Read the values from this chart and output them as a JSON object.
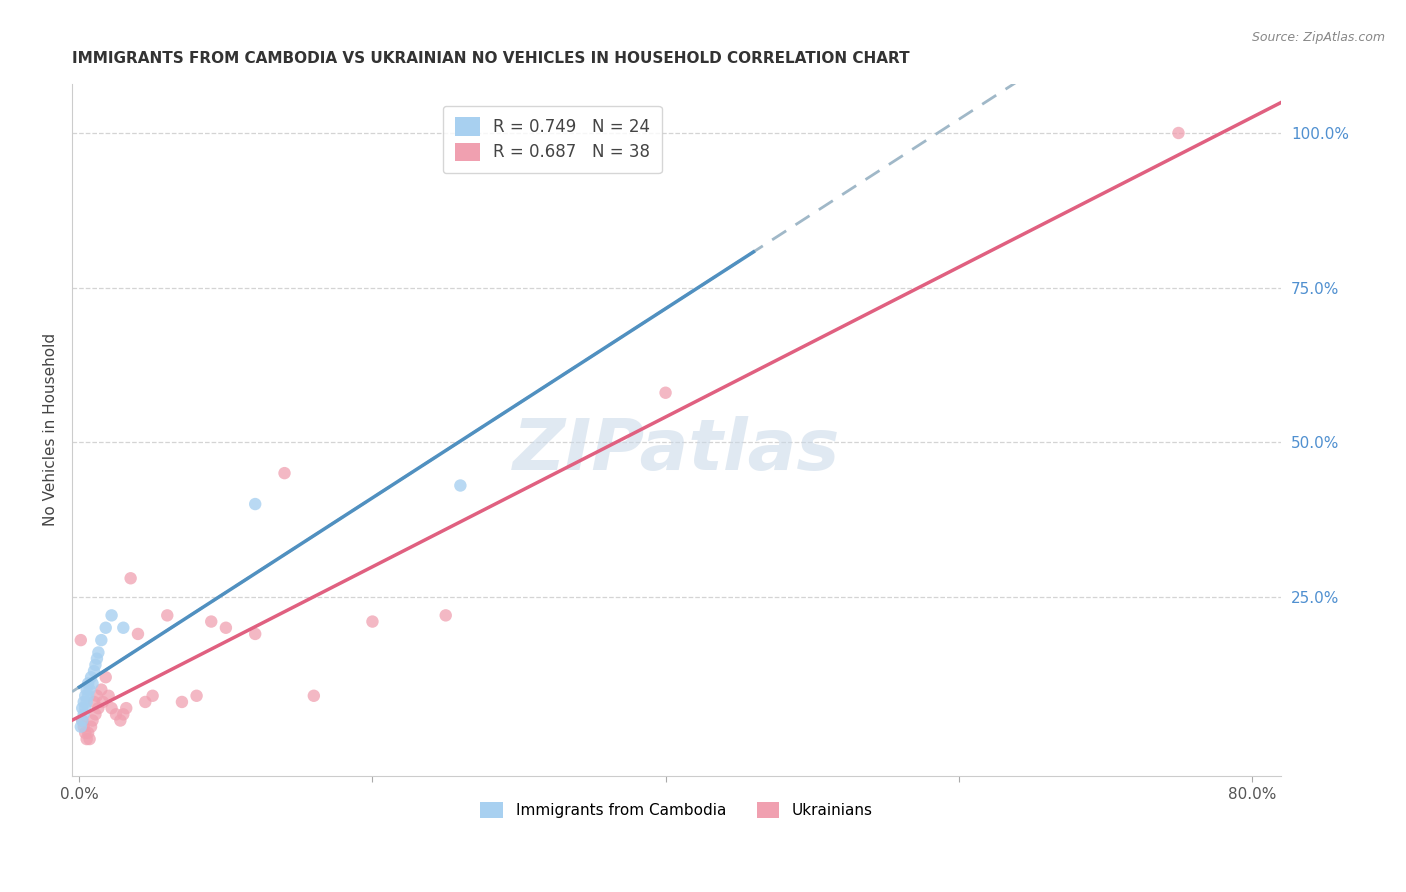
{
  "title": "IMMIGRANTS FROM CAMBODIA VS UKRAINIAN NO VEHICLES IN HOUSEHOLD CORRELATION CHART",
  "source": "Source: ZipAtlas.com",
  "ylabel": "No Vehicles in Household",
  "xlim_min": -0.005,
  "xlim_max": 0.82,
  "ylim_min": -0.04,
  "ylim_max": 1.08,
  "x_ticks": [
    0.0,
    0.2,
    0.4,
    0.6,
    0.8
  ],
  "x_tick_labels": [
    "0.0%",
    "",
    "",
    "",
    "80.0%"
  ],
  "y_tick_vals_right": [
    0.25,
    0.5,
    0.75,
    1.0
  ],
  "y_tick_labels_right": [
    "25.0%",
    "50.0%",
    "75.0%",
    "100.0%"
  ],
  "background_color": "#ffffff",
  "grid_color": "#d0d0d0",
  "cambodia_color": "#a8d0f0",
  "ukraine_color": "#f0a0b0",
  "cambodia_line_color": "#5090c0",
  "ukraine_line_color": "#e06080",
  "cambodia_line_style": "--",
  "ukraine_line_style": "-",
  "right_label_color": "#5090d0",
  "marker_size": 80,
  "watermark_text": "ZIPatlas",
  "legend_r1": "R = 0.749",
  "legend_n1": "N = 24",
  "legend_r2": "R = 0.687",
  "legend_n2": "N = 38",
  "cambodia_points_x": [
    0.001,
    0.002,
    0.002,
    0.003,
    0.003,
    0.004,
    0.004,
    0.005,
    0.005,
    0.006,
    0.006,
    0.007,
    0.008,
    0.009,
    0.01,
    0.011,
    0.012,
    0.013,
    0.015,
    0.018,
    0.022,
    0.03,
    0.12,
    0.26
  ],
  "cambodia_points_y": [
    0.04,
    0.05,
    0.07,
    0.06,
    0.08,
    0.07,
    0.09,
    0.08,
    0.1,
    0.09,
    0.11,
    0.1,
    0.12,
    0.11,
    0.13,
    0.14,
    0.15,
    0.16,
    0.18,
    0.2,
    0.22,
    0.2,
    0.4,
    0.43
  ],
  "ukraine_points_x": [
    0.001,
    0.002,
    0.003,
    0.004,
    0.005,
    0.006,
    0.007,
    0.008,
    0.009,
    0.01,
    0.011,
    0.012,
    0.013,
    0.015,
    0.016,
    0.018,
    0.02,
    0.022,
    0.025,
    0.028,
    0.03,
    0.032,
    0.035,
    0.04,
    0.045,
    0.05,
    0.06,
    0.07,
    0.08,
    0.09,
    0.1,
    0.12,
    0.14,
    0.16,
    0.2,
    0.25,
    0.4,
    0.75
  ],
  "ukraine_points_y": [
    0.18,
    0.05,
    0.04,
    0.03,
    0.02,
    0.03,
    0.02,
    0.04,
    0.05,
    0.08,
    0.06,
    0.09,
    0.07,
    0.1,
    0.08,
    0.12,
    0.09,
    0.07,
    0.06,
    0.05,
    0.06,
    0.07,
    0.28,
    0.19,
    0.08,
    0.09,
    0.22,
    0.08,
    0.09,
    0.21,
    0.2,
    0.19,
    0.45,
    0.09,
    0.21,
    0.22,
    0.58,
    1.0
  ]
}
